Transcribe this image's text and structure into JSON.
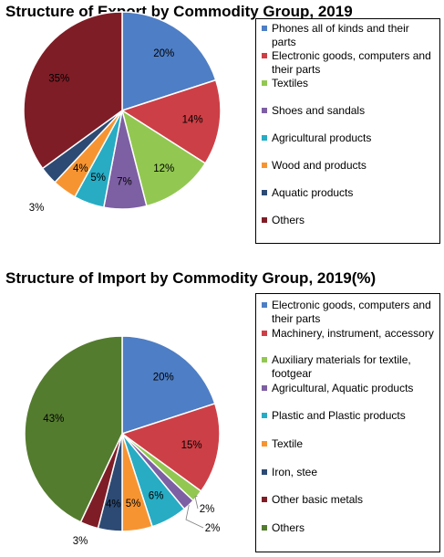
{
  "chart_data": [
    {
      "type": "pie",
      "title": "Structure of Export by Commodity Group, 2019",
      "legend_position": "right",
      "slices": [
        {
          "label": "Phones all of kinds and their parts",
          "value": 20,
          "display": "20%",
          "color": "#4E7EC5"
        },
        {
          "label": "Electronic goods, computers and their parts",
          "value": 14,
          "display": "14%",
          "color": "#CD3F46"
        },
        {
          "label": "Textiles",
          "value": 12,
          "display": "12%",
          "color": "#92C851"
        },
        {
          "label": "Shoes and sandals",
          "value": 7,
          "display": "7%",
          "color": "#7D5FA3"
        },
        {
          "label": "Agricultural products",
          "value": 5,
          "display": "5%",
          "color": "#27ACC4"
        },
        {
          "label": "Wood and products",
          "value": 4,
          "display": "4%",
          "color": "#F79432"
        },
        {
          "label": "Aquatic products",
          "value": 3,
          "display": "3%",
          "color": "#2C4A73"
        },
        {
          "label": "Others",
          "value": 35,
          "display": "35%",
          "color": "#7F1D26"
        }
      ]
    },
    {
      "type": "pie",
      "title": "Structure of Import by Commodity Group, 2019(%)",
      "legend_position": "right",
      "slices": [
        {
          "label": "Electronic goods, computers and their parts",
          "value": 20,
          "display": "20%",
          "color": "#4E7EC5"
        },
        {
          "label": "Machinery, instrument, accessory",
          "value": 15,
          "display": "15%",
          "color": "#CD3F46"
        },
        {
          "label": "Auxiliary materials for textile, footgear",
          "value": 2,
          "display": "2%",
          "color": "#92C851"
        },
        {
          "label": "Agricultural, Aquatic products",
          "value": 2,
          "display": "2%",
          "color": "#7D5FA3"
        },
        {
          "label": "Plastic and Plastic products",
          "value": 6,
          "display": "6%",
          "color": "#27ACC4"
        },
        {
          "label": "Textile",
          "value": 5,
          "display": "5%",
          "color": "#F79432"
        },
        {
          "label": "Iron, stee",
          "value": 4,
          "display": "4%",
          "color": "#2C4A73"
        },
        {
          "label": "Other basic metals",
          "value": 3,
          "display": "3%",
          "color": "#7F1D26"
        },
        {
          "label": "Others",
          "value": 43,
          "display": "43%",
          "color": "#547C2F"
        }
      ]
    }
  ]
}
